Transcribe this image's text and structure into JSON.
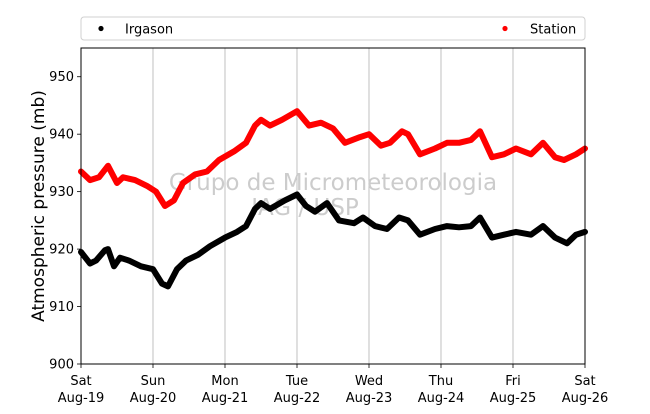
{
  "chart_data": {
    "type": "line",
    "title": "",
    "xlabel": "",
    "ylabel": "Atmospheric pressure (mb)",
    "ylim": [
      900,
      955
    ],
    "yticks": [
      900,
      910,
      920,
      930,
      940,
      950
    ],
    "xlim": [
      "2017-08-19",
      "2017-08-26"
    ],
    "xticks": [
      {
        "x": "2017-08-19",
        "day": "Sat",
        "date": "Aug-19"
      },
      {
        "x": "2017-08-20",
        "day": "Sun",
        "date": "Aug-20"
      },
      {
        "x": "2017-08-21",
        "day": "Mon",
        "date": "Aug-21"
      },
      {
        "x": "2017-08-22",
        "day": "Tue",
        "date": "Aug-22"
      },
      {
        "x": "2017-08-23",
        "day": "Wed",
        "date": "Aug-23"
      },
      {
        "x": "2017-08-24",
        "day": "Thu",
        "date": "Aug-24"
      },
      {
        "x": "2017-08-25",
        "day": "Fri",
        "date": "Aug-25"
      },
      {
        "x": "2017-08-26",
        "day": "Sat",
        "date": "Aug-26"
      }
    ],
    "grid": "vertical",
    "legend_position": "top",
    "watermark": [
      "Grupo de Micrometeorologia",
      "IAG / USP"
    ],
    "series": [
      {
        "name": "Irgason",
        "color": "#000000",
        "points": [
          [
            "2017-08-19 00:00",
            919.5
          ],
          [
            "2017-08-19 03:00",
            917.5
          ],
          [
            "2017-08-19 05:00",
            918.0
          ],
          [
            "2017-08-19 08:00",
            919.8
          ],
          [
            "2017-08-19 09:00",
            920.0
          ],
          [
            "2017-08-19 11:00",
            917.0
          ],
          [
            "2017-08-19 13:00",
            918.5
          ],
          [
            "2017-08-19 16:00",
            918.0
          ],
          [
            "2017-08-19 20:00",
            917.0
          ],
          [
            "2017-08-20 00:00",
            916.5
          ],
          [
            "2017-08-20 03:00",
            914.0
          ],
          [
            "2017-08-20 05:00",
            913.5
          ],
          [
            "2017-08-20 08:00",
            916.5
          ],
          [
            "2017-08-20 11:00",
            918.0
          ],
          [
            "2017-08-20 15:00",
            919.0
          ],
          [
            "2017-08-20 19:00",
            920.5
          ],
          [
            "2017-08-21 00:00",
            922.0
          ],
          [
            "2017-08-21 04:00",
            923.0
          ],
          [
            "2017-08-21 07:00",
            924.0
          ],
          [
            "2017-08-21 10:00",
            927.0
          ],
          [
            "2017-08-21 12:00",
            928.0
          ],
          [
            "2017-08-21 15:00",
            927.0
          ],
          [
            "2017-08-21 20:00",
            928.5
          ],
          [
            "2017-08-22 00:00",
            929.5
          ],
          [
            "2017-08-22 03:00",
            927.5
          ],
          [
            "2017-08-22 06:00",
            926.5
          ],
          [
            "2017-08-22 10:00",
            928.0
          ],
          [
            "2017-08-22 14:00",
            925.0
          ],
          [
            "2017-08-22 19:00",
            924.5
          ],
          [
            "2017-08-22 22:00",
            925.5
          ],
          [
            "2017-08-23 02:00",
            924.0
          ],
          [
            "2017-08-23 06:00",
            923.5
          ],
          [
            "2017-08-23 10:00",
            925.5
          ],
          [
            "2017-08-23 13:00",
            925.0
          ],
          [
            "2017-08-23 17:00",
            922.5
          ],
          [
            "2017-08-23 22:00",
            923.5
          ],
          [
            "2017-08-24 02:00",
            924.0
          ],
          [
            "2017-08-24 06:00",
            923.8
          ],
          [
            "2017-08-24 10:00",
            924.0
          ],
          [
            "2017-08-24 13:00",
            925.5
          ],
          [
            "2017-08-24 17:00",
            922.0
          ],
          [
            "2017-08-24 21:00",
            922.5
          ],
          [
            "2017-08-25 01:00",
            923.0
          ],
          [
            "2017-08-25 06:00",
            922.5
          ],
          [
            "2017-08-25 10:00",
            924.0
          ],
          [
            "2017-08-25 14:00",
            922.0
          ],
          [
            "2017-08-25 18:00",
            921.0
          ],
          [
            "2017-08-25 21:00",
            922.5
          ],
          [
            "2017-08-26 00:00",
            923.0
          ]
        ]
      },
      {
        "name": "Station",
        "color": "#ff0000",
        "points": [
          [
            "2017-08-19 00:00",
            933.5
          ],
          [
            "2017-08-19 03:00",
            932.0
          ],
          [
            "2017-08-19 06:00",
            932.5
          ],
          [
            "2017-08-19 09:00",
            934.5
          ],
          [
            "2017-08-19 12:00",
            931.5
          ],
          [
            "2017-08-19 14:00",
            932.5
          ],
          [
            "2017-08-19 18:00",
            932.0
          ],
          [
            "2017-08-19 22:00",
            931.0
          ],
          [
            "2017-08-20 01:00",
            930.0
          ],
          [
            "2017-08-20 04:00",
            927.5
          ],
          [
            "2017-08-20 07:00",
            928.5
          ],
          [
            "2017-08-20 10:00",
            931.5
          ],
          [
            "2017-08-20 14:00",
            933.0
          ],
          [
            "2017-08-20 18:00",
            933.5
          ],
          [
            "2017-08-20 22:00",
            935.5
          ],
          [
            "2017-08-21 03:00",
            937.0
          ],
          [
            "2017-08-21 07:00",
            938.5
          ],
          [
            "2017-08-21 10:00",
            941.5
          ],
          [
            "2017-08-21 12:00",
            942.5
          ],
          [
            "2017-08-21 15:00",
            941.5
          ],
          [
            "2017-08-21 19:00",
            942.5
          ],
          [
            "2017-08-22 00:00",
            944.0
          ],
          [
            "2017-08-22 04:00",
            941.5
          ],
          [
            "2017-08-22 08:00",
            942.0
          ],
          [
            "2017-08-22 12:00",
            941.0
          ],
          [
            "2017-08-22 16:00",
            938.5
          ],
          [
            "2017-08-22 21:00",
            939.5
          ],
          [
            "2017-08-23 00:00",
            940.0
          ],
          [
            "2017-08-23 04:00",
            938.0
          ],
          [
            "2017-08-23 07:00",
            938.5
          ],
          [
            "2017-08-23 11:00",
            940.5
          ],
          [
            "2017-08-23 13:00",
            940.0
          ],
          [
            "2017-08-23 17:00",
            936.5
          ],
          [
            "2017-08-23 22:00",
            937.5
          ],
          [
            "2017-08-24 02:00",
            938.5
          ],
          [
            "2017-08-24 06:00",
            938.5
          ],
          [
            "2017-08-24 10:00",
            939.0
          ],
          [
            "2017-08-24 13:00",
            940.5
          ],
          [
            "2017-08-24 17:00",
            936.0
          ],
          [
            "2017-08-24 21:00",
            936.5
          ],
          [
            "2017-08-25 01:00",
            937.5
          ],
          [
            "2017-08-25 06:00",
            936.5
          ],
          [
            "2017-08-25 10:00",
            938.5
          ],
          [
            "2017-08-25 14:00",
            936.0
          ],
          [
            "2017-08-25 17:00",
            935.5
          ],
          [
            "2017-08-25 21:00",
            936.5
          ],
          [
            "2017-08-26 00:00",
            937.5
          ]
        ]
      }
    ]
  }
}
